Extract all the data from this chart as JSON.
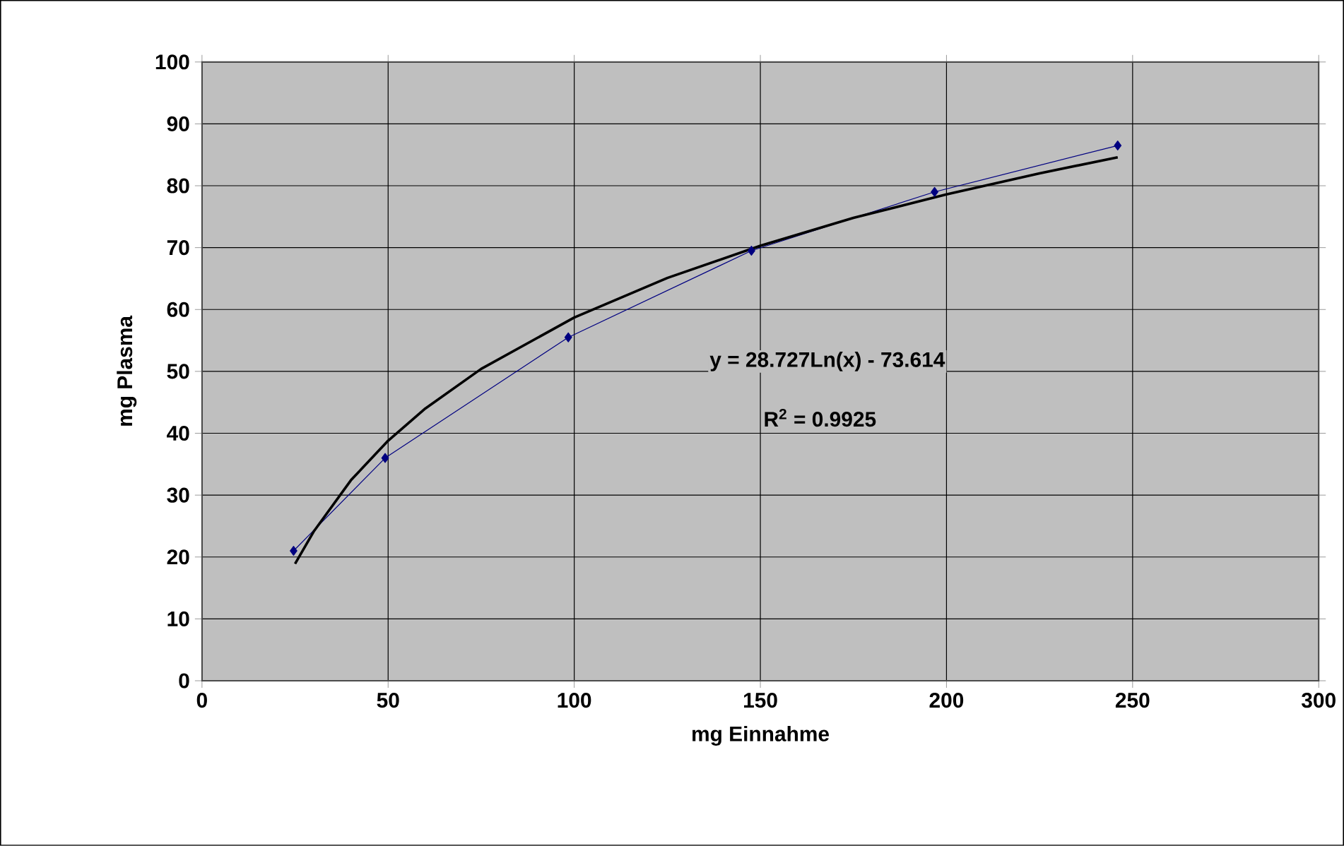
{
  "chart_data": {
    "type": "line",
    "xlabel": "mg Einnahme",
    "ylabel": "mg Plasma",
    "xlim": [
      0,
      300
    ],
    "xticks": [
      0,
      50,
      100,
      150,
      200,
      250,
      300
    ],
    "ylim": [
      0,
      100
    ],
    "yticks": [
      0,
      10,
      20,
      30,
      40,
      50,
      60,
      70,
      80,
      90,
      100
    ],
    "grid": true,
    "series": [
      {
        "color": "#000080",
        "marker": "diamond",
        "x": [
          24.6,
          49.2,
          98.4,
          147.6,
          196.8,
          246
        ],
        "values": [
          21,
          36,
          55.5,
          69.5,
          79,
          86.5
        ]
      },
      {
        "color": "#000000",
        "marker": "none",
        "x": [
          25,
          30,
          40,
          50,
          60,
          75,
          100,
          125,
          150,
          175,
          200,
          225,
          246
        ],
        "values": [
          18.9,
          24.1,
          32.4,
          38.8,
          44.0,
          50.4,
          58.7,
          65.1,
          70.3,
          74.8,
          78.6,
          82.0,
          84.6
        ]
      }
    ],
    "annotations": [
      "y = 28.727Ln(x) - 73.614",
      "R$^{2}$ = 0.9925"
    ]
  }
}
